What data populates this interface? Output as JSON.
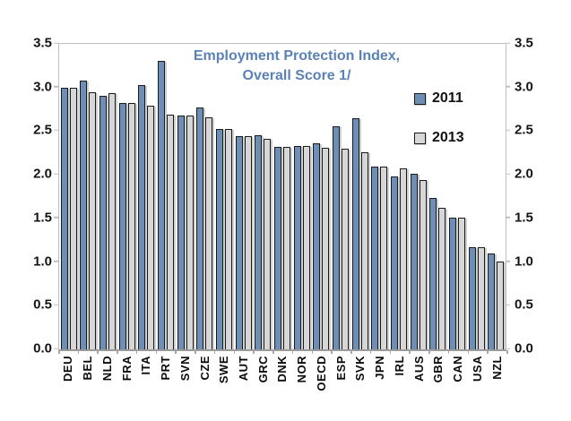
{
  "page": {
    "background": "#ffffff"
  },
  "chart_data": {
    "type": "bar",
    "title_line1": "Employment Protection Index,",
    "title_line2": "Overall Score 1/",
    "title_color": "#5B82B5",
    "categories": [
      "DEU",
      "BEL",
      "NLD",
      "FRA",
      "ITA",
      "PRT",
      "SVN",
      "CZE",
      "SWE",
      "AUT",
      "GRC",
      "DNK",
      "NOR",
      "OECD",
      "ESP",
      "SVK",
      "JPN",
      "IRL",
      "AUS",
      "GBR",
      "CAN",
      "USA",
      "NZL"
    ],
    "series": [
      {
        "name": "2011",
        "color": "#6D8FB6",
        "values": [
          3.0,
          3.08,
          2.9,
          2.82,
          3.03,
          3.31,
          2.68,
          2.77,
          2.52,
          2.44,
          2.45,
          2.32,
          2.33,
          2.36,
          2.56,
          2.65,
          2.09,
          1.98,
          2.01,
          1.73,
          1.51,
          1.17,
          1.1
        ]
      },
      {
        "name": "2013",
        "color": "#D7D7D7",
        "values": [
          3.0,
          2.95,
          2.94,
          2.82,
          2.79,
          2.69,
          2.68,
          2.66,
          2.52,
          2.44,
          2.41,
          2.32,
          2.33,
          2.31,
          2.3,
          2.26,
          2.09,
          2.07,
          1.94,
          1.62,
          1.51,
          1.17,
          1.01
        ]
      }
    ],
    "ylim": [
      0,
      3.5
    ],
    "yticks": [
      0.0,
      0.5,
      1.0,
      1.5,
      2.0,
      2.5,
      3.0,
      3.5
    ],
    "ytick_labels": [
      "0.0",
      "0.5",
      "1.0",
      "1.5",
      "2.0",
      "2.5",
      "3.0",
      "3.5"
    ],
    "y_axis_sides": "both",
    "grid": false,
    "legend_position": "inside-right",
    "bar_border_color": "#1A1A1A",
    "axis_frame_color": "#BFBFBF",
    "axis_text_color": "#141414"
  }
}
